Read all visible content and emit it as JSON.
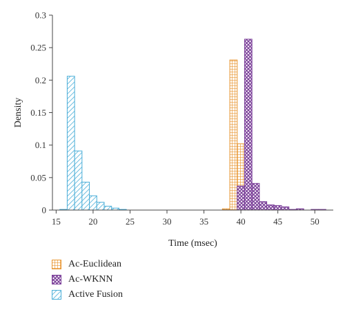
{
  "chart_data": {
    "type": "bar",
    "xlabel": "Time (msec)",
    "ylabel": "Density",
    "xlim": [
      14.5,
      52.5
    ],
    "ylim": [
      0,
      0.3
    ],
    "xticks": [
      15,
      20,
      25,
      30,
      35,
      40,
      45,
      50
    ],
    "yticks": [
      0,
      0.05,
      0.1,
      0.15,
      0.2,
      0.25,
      0.3
    ],
    "ytick_labels": [
      "0",
      "0.05",
      "0.1",
      "0.15",
      "0.2",
      "0.25",
      "0.3"
    ],
    "bin_width": 1,
    "legend_position": "below",
    "grid": false,
    "series": [
      {
        "name": "Active Fusion",
        "color": "#4aaed8",
        "pattern": "diagonal-hatch",
        "x": [
          16,
          17,
          18,
          19,
          20,
          21,
          22,
          23,
          24
        ],
        "values": [
          0.001,
          0.206,
          0.091,
          0.043,
          0.022,
          0.012,
          0.006,
          0.003,
          0.001
        ]
      },
      {
        "name": "Ac-Euclidean",
        "color": "#e8952f",
        "pattern": "grid",
        "x": [
          38,
          39,
          40,
          41,
          42,
          43
        ],
        "values": [
          0.002,
          0.231,
          0.102,
          0.0,
          0.004,
          0.003
        ]
      },
      {
        "name": "Ac-WKNN",
        "color": "#7b3f99",
        "pattern": "crosshatch",
        "x": [
          40,
          41,
          42,
          43,
          44,
          45,
          46,
          47,
          48,
          50,
          51
        ],
        "values": [
          0.037,
          0.263,
          0.041,
          0.013,
          0.008,
          0.007,
          0.005,
          0.001,
          0.002,
          0.001,
          0.001
        ]
      }
    ],
    "legend": [
      "Ac-Euclidean",
      "Ac-WKNN",
      "Active Fusion"
    ]
  }
}
